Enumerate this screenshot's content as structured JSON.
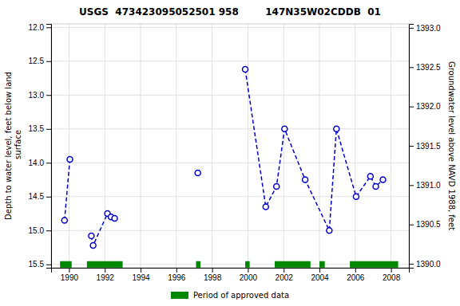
{
  "chart_data": {
    "type": "line",
    "title": "USGS  473423095052501 958        147N35W02CDDB  01",
    "ylabel": "Depth to water level, feet below land\n surface",
    "y2label": "Groundwater level above NAVD 1988, feet",
    "xlim": [
      1989.0,
      2009.0
    ],
    "xticks": [
      1990,
      1992,
      1994,
      1996,
      1998,
      2000,
      2002,
      2004,
      2006,
      2008
    ],
    "ylim": [
      15.55,
      11.95
    ],
    "yticks": [
      {
        "value": 12.0,
        "label": "12.0"
      },
      12.5,
      {
        "value": 13.0,
        "label": "13.0"
      },
      13.5,
      {
        "value": 14.0,
        "label": "14.0"
      },
      14.5,
      {
        "value": 15.0,
        "label": "15.0"
      },
      15.5
    ],
    "y2lim": [
      1389.95,
      1393.05
    ],
    "y2ticks": [
      {
        "value": 1390.0,
        "label": "1390.0"
      },
      1390.5,
      {
        "value": 1391.0,
        "label": "1391.0"
      },
      1391.5,
      {
        "value": 1392.0,
        "label": "1392.0"
      },
      1392.5,
      {
        "value": 1393.0,
        "label": "1393.0"
      }
    ],
    "grid": true,
    "legend": "bottom",
    "series": [
      {
        "x": [
          1989.75,
          1990.05
        ],
        "values": [
          14.85,
          13.95
        ],
        "color": "#0000cc",
        "marker": "circle",
        "line_style": "dashed"
      },
      {
        "x": [
          1991.25,
          1991.35,
          1992.15,
          1992.35,
          1992.55
        ],
        "values": [
          15.08,
          15.22,
          14.75,
          14.8,
          14.82
        ],
        "color": "#0000cc",
        "marker": "circle",
        "line_style": "dashed"
      },
      {
        "x": [
          1997.2
        ],
        "values": [
          14.15
        ],
        "color": "#0000cc",
        "marker": "circle",
        "line_style": "dashed"
      },
      {
        "x": [
          1999.85,
          2001.0,
          2001.6,
          2002.05,
          2003.2,
          2004.55,
          2004.95,
          2006.05,
          2006.85,
          2007.15,
          2007.55
        ],
        "values": [
          12.62,
          14.65,
          14.35,
          13.5,
          14.25,
          15.0,
          13.5,
          14.5,
          14.2,
          14.35,
          14.25
        ],
        "color": "#0000cc",
        "marker": "circle",
        "line_style": "dashed"
      },
      {
        "name": "Period of approved data",
        "type": "span",
        "color": "#008800",
        "x_start": [
          1989.5,
          1991.0,
          1997.1,
          1999.85,
          2001.5,
          2004.0,
          2005.7
        ],
        "x_end": [
          1990.15,
          1993.0,
          1997.35,
          2000.1,
          2003.5,
          2004.3,
          2008.4
        ],
        "values": [
          15.5,
          15.5,
          15.5,
          15.5,
          15.5,
          15.5,
          15.5
        ]
      }
    ]
  }
}
